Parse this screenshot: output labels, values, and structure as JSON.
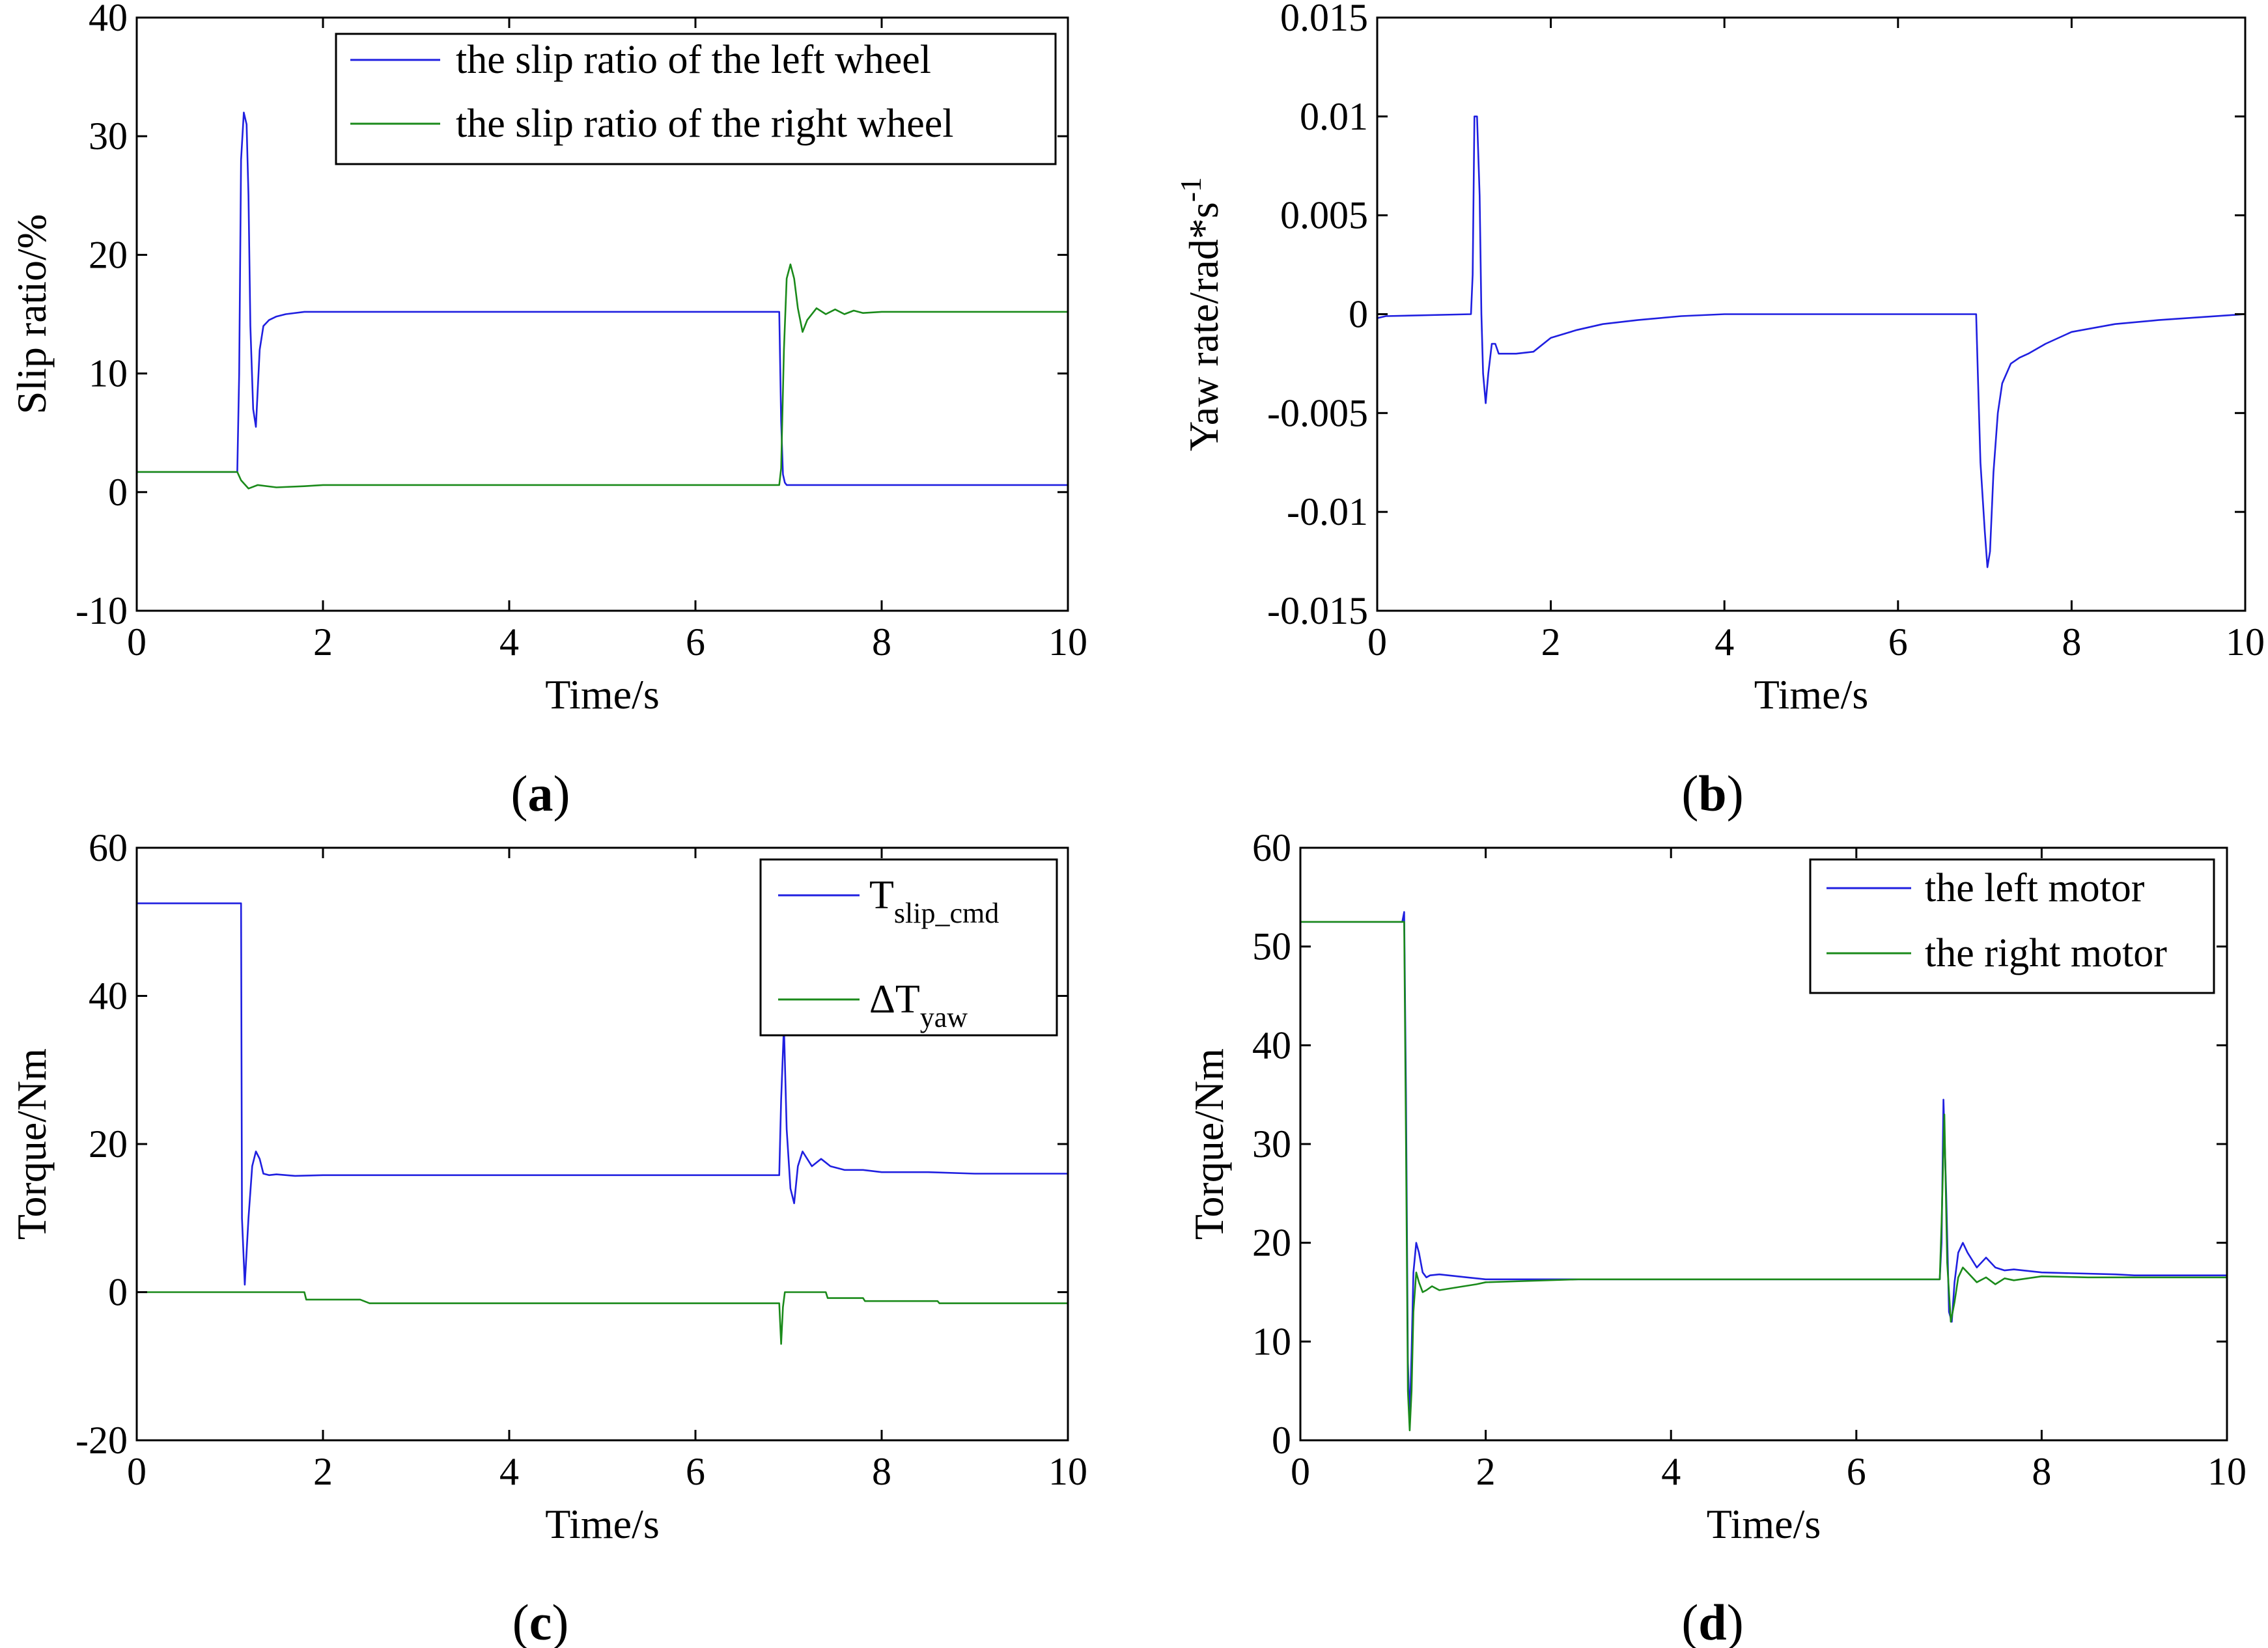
{
  "colors": {
    "blue": "#1f1fe0",
    "green": "#1a8a1a"
  },
  "chart_data": [
    {
      "id": "a",
      "type": "line",
      "caption_letter": "a",
      "xlabel": "Time/s",
      "ylabel": "Slip ratio/%",
      "xlim": [
        0,
        10
      ],
      "ylim": [
        -10,
        40
      ],
      "xticks": [
        0,
        2,
        4,
        6,
        8,
        10
      ],
      "xtick_labels": [
        "0",
        "2",
        "4",
        "6",
        "8",
        "10"
      ],
      "yticks": [
        -10,
        0,
        10,
        20,
        30,
        40
      ],
      "ytick_labels": [
        "-10",
        "0",
        "10",
        "20",
        "30",
        "40"
      ],
      "legend": {
        "position": "top-right",
        "entries": [
          {
            "text": "the slip ratio of the left wheel",
            "sub": "",
            "color": "#1f1fe0"
          },
          {
            "text": "the slip ratio of the right wheel",
            "sub": "",
            "color": "#1a8a1a"
          }
        ]
      },
      "series": [
        {
          "name": "the slip ratio of the left wheel",
          "color": "#1f1fe0",
          "x": [
            0,
            1.08,
            1.1,
            1.12,
            1.15,
            1.18,
            1.2,
            1.22,
            1.25,
            1.28,
            1.32,
            1.36,
            1.42,
            1.5,
            1.6,
            1.8,
            2.0,
            3,
            4,
            5,
            6,
            6.9,
            6.92,
            6.94,
            6.96,
            6.98,
            7.05,
            8,
            9,
            10
          ],
          "y": [
            1.7,
            1.7,
            10,
            28,
            32,
            31,
            25,
            14,
            7,
            5.5,
            12,
            14,
            14.5,
            14.8,
            15,
            15.2,
            15.2,
            15.2,
            15.2,
            15.2,
            15.2,
            15.2,
            6,
            1.5,
            0.8,
            0.6,
            0.6,
            0.6,
            0.6,
            0.6
          ]
        },
        {
          "name": "the slip ratio of the right wheel",
          "color": "#1a8a1a",
          "x": [
            0,
            1.08,
            1.12,
            1.2,
            1.3,
            1.5,
            1.8,
            2.0,
            3,
            4,
            5,
            6,
            6.9,
            6.92,
            6.95,
            6.98,
            7.02,
            7.06,
            7.1,
            7.15,
            7.2,
            7.3,
            7.4,
            7.5,
            7.6,
            7.7,
            7.8,
            8.0,
            8.2,
            9,
            10
          ],
          "y": [
            1.7,
            1.7,
            1.0,
            0.3,
            0.6,
            0.4,
            0.5,
            0.6,
            0.6,
            0.6,
            0.6,
            0.6,
            0.6,
            2,
            12,
            18,
            19.2,
            18,
            15.5,
            13.5,
            14.5,
            15.5,
            15.0,
            15.4,
            15.0,
            15.3,
            15.1,
            15.2,
            15.2,
            15.2,
            15.2
          ]
        }
      ]
    },
    {
      "id": "b",
      "type": "line",
      "caption_letter": "b",
      "xlabel": "Time/s",
      "ylabel": "Yaw rate/rad*s",
      "ylabel_sup": "-1",
      "xlim": [
        0,
        10
      ],
      "ylim": [
        -0.015,
        0.015
      ],
      "xticks": [
        0,
        2,
        4,
        6,
        8,
        10
      ],
      "xtick_labels": [
        "0",
        "2",
        "4",
        "6",
        "8",
        "10"
      ],
      "yticks": [
        -0.015,
        -0.01,
        -0.005,
        0,
        0.005,
        0.01,
        0.015
      ],
      "ytick_labels": [
        "-0.015",
        "-0.01",
        "-0.005",
        "0",
        "0.005",
        "0.01",
        "0.015"
      ],
      "legend": null,
      "series": [
        {
          "name": "yaw rate",
          "color": "#1f1fe0",
          "x": [
            0,
            0.1,
            1.08,
            1.1,
            1.12,
            1.15,
            1.18,
            1.2,
            1.22,
            1.25,
            1.28,
            1.32,
            1.36,
            1.4,
            1.5,
            1.6,
            1.8,
            2.0,
            2.3,
            2.6,
            3.0,
            3.5,
            4.0,
            5,
            6,
            6.9,
            6.92,
            6.95,
            7.0,
            7.03,
            7.06,
            7.1,
            7.15,
            7.2,
            7.3,
            7.4,
            7.5,
            7.7,
            8.0,
            8.5,
            9.0,
            10
          ],
          "y": [
            -0.0002,
            -0.0001,
            0,
            0.002,
            0.01,
            0.01,
            0.006,
            0,
            -0.003,
            -0.0045,
            -0.003,
            -0.0015,
            -0.0015,
            -0.002,
            -0.002,
            -0.002,
            -0.0019,
            -0.0012,
            -0.0008,
            -0.0005,
            -0.0003,
            -0.0001,
            0,
            0,
            0,
            0,
            -0.003,
            -0.0075,
            -0.011,
            -0.0128,
            -0.012,
            -0.008,
            -0.005,
            -0.0035,
            -0.0025,
            -0.0022,
            -0.002,
            -0.0015,
            -0.0009,
            -0.0005,
            -0.0003,
            0
          ]
        }
      ]
    },
    {
      "id": "c",
      "type": "line",
      "caption_letter": "c",
      "xlabel": "Time/s",
      "ylabel": "Torque/Nm",
      "xlim": [
        0,
        10
      ],
      "ylim": [
        -20,
        60
      ],
      "xticks": [
        0,
        2,
        4,
        6,
        8,
        10
      ],
      "xtick_labels": [
        "0",
        "2",
        "4",
        "6",
        "8",
        "10"
      ],
      "yticks": [
        -20,
        0,
        20,
        40,
        60
      ],
      "ytick_labels": [
        "-20",
        "0",
        "20",
        "40",
        "60"
      ],
      "legend": {
        "position": "top-right",
        "entries": [
          {
            "text": "T",
            "sub": "slip_cmd",
            "color": "#1f1fe0"
          },
          {
            "text": "ΔT",
            "sub": "yaw",
            "color": "#1a8a1a"
          }
        ]
      },
      "series": [
        {
          "name": "T slip_cmd",
          "color": "#1f1fe0",
          "x": [
            0,
            1.12,
            1.13,
            1.16,
            1.2,
            1.24,
            1.28,
            1.32,
            1.36,
            1.42,
            1.5,
            1.7,
            2,
            3,
            4,
            5,
            6,
            6.9,
            6.92,
            6.95,
            6.98,
            7.02,
            7.06,
            7.1,
            7.15,
            7.25,
            7.35,
            7.45,
            7.6,
            7.8,
            8.0,
            8.5,
            9,
            10
          ],
          "y": [
            52.5,
            52.5,
            10,
            1,
            10,
            17,
            19,
            18,
            16,
            15.8,
            15.9,
            15.7,
            15.8,
            15.8,
            15.8,
            15.8,
            15.8,
            15.8,
            26,
            36,
            22,
            14,
            12,
            17,
            19,
            17,
            18,
            17,
            16.5,
            16.5,
            16.2,
            16.2,
            16,
            16
          ]
        },
        {
          "name": "ΔT yaw",
          "color": "#1a8a1a",
          "x": [
            0,
            1.1,
            1.15,
            1.8,
            1.82,
            2.4,
            2.5,
            3,
            4,
            5,
            6,
            6.9,
            6.92,
            6.94,
            6.96,
            7.0,
            7.4,
            7.42,
            7.8,
            7.82,
            8.6,
            8.62,
            9,
            10
          ],
          "y": [
            0,
            0,
            0,
            0,
            -1,
            -1,
            -1.5,
            -1.5,
            -1.5,
            -1.5,
            -1.5,
            -1.5,
            -7,
            -2,
            0,
            0,
            0,
            -0.8,
            -0.8,
            -1.2,
            -1.2,
            -1.5,
            -1.5,
            -1.5
          ]
        }
      ]
    },
    {
      "id": "d",
      "type": "line",
      "caption_letter": "d",
      "xlabel": "Time/s",
      "ylabel": "Torque/Nm",
      "xlim": [
        0,
        10
      ],
      "ylim": [
        0,
        60
      ],
      "xticks": [
        0,
        2,
        4,
        6,
        8,
        10
      ],
      "xtick_labels": [
        "0",
        "2",
        "4",
        "6",
        "8",
        "10"
      ],
      "yticks": [
        0,
        10,
        20,
        30,
        40,
        50,
        60
      ],
      "ytick_labels": [
        "0",
        "10",
        "20",
        "30",
        "40",
        "50",
        "60"
      ],
      "legend": {
        "position": "top-right",
        "entries": [
          {
            "text": "the left motor",
            "sub": "",
            "color": "#1f1fe0"
          },
          {
            "text": "the right motor",
            "sub": "",
            "color": "#1a8a1a"
          }
        ]
      },
      "series": [
        {
          "name": "the left motor",
          "color": "#1f1fe0",
          "x": [
            0,
            1.1,
            1.12,
            1.14,
            1.16,
            1.18,
            1.2,
            1.22,
            1.25,
            1.28,
            1.32,
            1.36,
            1.4,
            1.5,
            1.8,
            2.0,
            3,
            4,
            5,
            6,
            6.9,
            6.92,
            6.94,
            6.97,
            7.0,
            7.03,
            7.06,
            7.1,
            7.15,
            7.2,
            7.3,
            7.4,
            7.5,
            7.6,
            7.7,
            8.0,
            8.8,
            9,
            10
          ],
          "y": [
            52.5,
            52.5,
            53.5,
            35,
            8,
            2,
            9,
            17,
            20,
            19,
            17,
            16.5,
            16.7,
            16.8,
            16.5,
            16.3,
            16.3,
            16.3,
            16.3,
            16.3,
            16.3,
            20,
            34.5,
            25,
            13,
            12,
            16,
            19,
            20,
            19,
            17.5,
            18.5,
            17.5,
            17.2,
            17.3,
            17,
            16.8,
            16.7,
            16.7
          ]
        },
        {
          "name": "the right motor",
          "color": "#1a8a1a",
          "x": [
            0,
            1.1,
            1.12,
            1.14,
            1.16,
            1.18,
            1.2,
            1.22,
            1.25,
            1.28,
            1.32,
            1.36,
            1.42,
            1.5,
            1.7,
            1.9,
            2.0,
            3,
            4,
            5,
            6,
            6.9,
            6.92,
            6.95,
            6.98,
            7.02,
            7.06,
            7.1,
            7.15,
            7.2,
            7.3,
            7.4,
            7.5,
            7.6,
            7.7,
            8.0,
            8.5,
            9,
            10
          ],
          "y": [
            52.5,
            52.5,
            52.5,
            30,
            5,
            1,
            5,
            13,
            17,
            16,
            15,
            15.2,
            15.6,
            15.2,
            15.5,
            15.8,
            16.0,
            16.3,
            16.3,
            16.3,
            16.3,
            16.3,
            22,
            33,
            18,
            12,
            14,
            16.5,
            17.5,
            17,
            16,
            16.5,
            15.8,
            16.4,
            16.2,
            16.6,
            16.5,
            16.5,
            16.5
          ]
        }
      ]
    }
  ]
}
